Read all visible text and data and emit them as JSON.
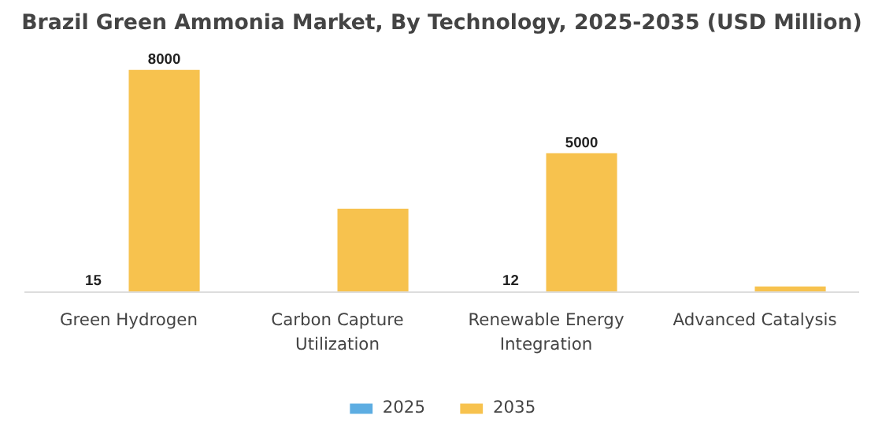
{
  "chart_data": {
    "type": "bar",
    "title": "Brazil Green Ammonia Market, By Technology, 2025-2035 (USD Million)",
    "categories": [
      "Green Hydrogen",
      "Carbon Capture Utilization",
      "Renewable Energy Integration",
      "Advanced Catalysis"
    ],
    "series": [
      {
        "name": "2025",
        "color": "#5dade2",
        "values": [
          15,
          null,
          12,
          null
        ],
        "value_labels": [
          "15",
          null,
          "12",
          null
        ]
      },
      {
        "name": "2035",
        "color": "#f7c24e",
        "values": [
          8000,
          3000,
          5000,
          200
        ],
        "value_labels": [
          "8000",
          null,
          "5000",
          null
        ]
      }
    ],
    "legend": "bottom"
  }
}
